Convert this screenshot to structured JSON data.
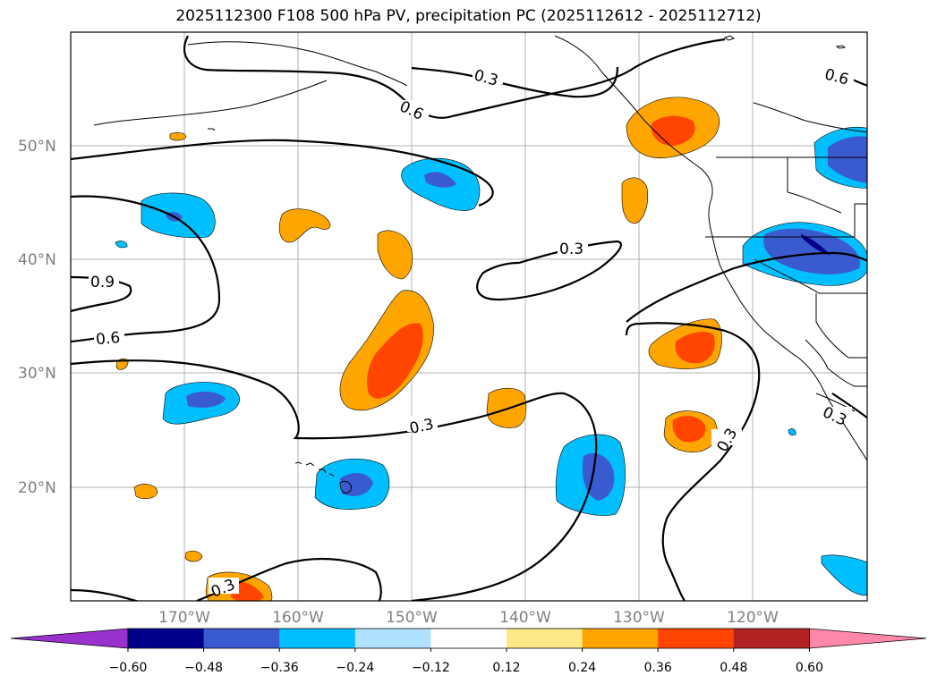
{
  "title": "2025112300 F108 500 hPa PV, precipitation PC (2025112612 - 2025112712)",
  "map": {
    "region": "North Pacific / western North America",
    "lon_range": [
      -180,
      -110
    ],
    "lat_range": [
      10,
      60
    ],
    "lat_ticks": [
      "50°N",
      "40°N",
      "30°N",
      "20°N"
    ],
    "lon_ticks": [
      "170°W",
      "160°W",
      "150°W",
      "140°W",
      "130°W",
      "120°W"
    ],
    "grid": true
  },
  "contours": {
    "variable": "500 hPa PV",
    "labels": [
      "0.3",
      "0.6",
      "0.3",
      "0.6",
      "0.9",
      "0.6",
      "0.3",
      "0.3",
      "0.3",
      "0.3"
    ]
  },
  "colorbar": {
    "variable": "precipitation PC",
    "ticks": [
      "−0.60",
      "−0.48",
      "−0.36",
      "−0.24",
      "−0.12",
      "0.12",
      "0.24",
      "0.36",
      "0.48",
      "0.60"
    ],
    "colors": [
      "#9932cc",
      "#00008b",
      "#3a5bd0",
      "#00bfff",
      "#b0e2ff",
      "#ffffff",
      "#ffe88a",
      "#ffa500",
      "#ff4500",
      "#b22222",
      "#ff88aa"
    ],
    "extend": "both"
  }
}
